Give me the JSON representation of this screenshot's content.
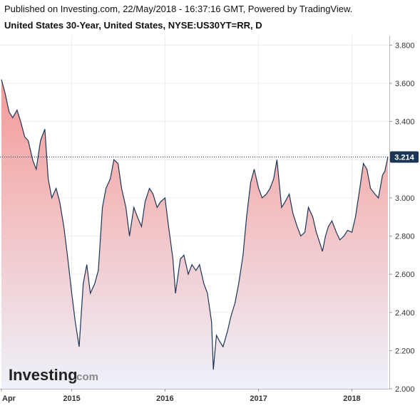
{
  "header": {
    "published": "Published on Investing.com, 22/May/2018 - 16:37:16 GMT, Powered by TradingView.",
    "symbol": "United States 30-Year, United States, NYSE:US30YT=RR, D"
  },
  "logo": {
    "main": "Investing",
    "suffix": ".com"
  },
  "colors": {
    "line": "#1c3557",
    "fill_top": "#f59a97",
    "fill_bottom": "#eef1fa",
    "last_label_bg": "#1c3557",
    "grid": "#ececec"
  },
  "chart_data": {
    "type": "area",
    "ylim": [
      2.0,
      3.85
    ],
    "grid": true,
    "y_ticks": [
      "3.800",
      "3.600",
      "3.400",
      "3.200",
      "3.000",
      "2.800",
      "2.600",
      "2.400",
      "2.200",
      "2.000"
    ],
    "x_tick_labels": [
      "Apr",
      "2015",
      "2016",
      "2017",
      "2018"
    ],
    "last_value": "3.214",
    "series": [
      {
        "x": [
          "2014-04-01",
          "2014-04-15",
          "2014-05-01",
          "2014-05-15",
          "2014-06-01",
          "2014-06-15",
          "2014-07-01",
          "2014-07-15",
          "2014-08-01",
          "2014-08-15",
          "2014-09-01",
          "2014-09-18",
          "2014-10-01",
          "2014-10-15",
          "2014-11-01",
          "2014-11-15",
          "2014-12-01",
          "2014-12-15",
          "2015-01-01",
          "2015-01-15",
          "2015-01-30",
          "2015-02-15",
          "2015-03-01",
          "2015-03-15",
          "2015-04-01",
          "2015-04-15",
          "2015-05-01",
          "2015-05-15",
          "2015-06-01",
          "2015-06-15",
          "2015-07-01",
          "2015-07-15",
          "2015-08-01",
          "2015-08-15",
          "2015-09-01",
          "2015-09-15",
          "2015-10-01",
          "2015-10-15",
          "2015-11-01",
          "2015-11-15",
          "2015-12-01",
          "2015-12-15",
          "2016-01-01",
          "2016-01-15",
          "2016-02-01",
          "2016-02-11",
          "2016-03-01",
          "2016-03-15",
          "2016-04-01",
          "2016-04-15",
          "2016-05-01",
          "2016-05-15",
          "2016-06-01",
          "2016-06-15",
          "2016-07-01",
          "2016-07-08",
          "2016-07-20",
          "2016-08-01",
          "2016-08-15",
          "2016-09-01",
          "2016-09-15",
          "2016-10-01",
          "2016-10-15",
          "2016-11-01",
          "2016-11-15",
          "2016-12-01",
          "2016-12-15",
          "2017-01-01",
          "2017-01-15",
          "2017-02-01",
          "2017-02-15",
          "2017-03-01",
          "2017-03-14",
          "2017-04-01",
          "2017-04-15",
          "2017-05-01",
          "2017-05-15",
          "2017-06-01",
          "2017-06-15",
          "2017-07-01",
          "2017-07-15",
          "2017-08-01",
          "2017-08-15",
          "2017-09-01",
          "2017-09-08",
          "2017-09-20",
          "2017-10-01",
          "2017-10-15",
          "2017-11-01",
          "2017-11-15",
          "2017-12-01",
          "2017-12-15",
          "2018-01-01",
          "2018-01-15",
          "2018-02-01",
          "2018-02-15",
          "2018-03-01",
          "2018-03-15",
          "2018-04-01",
          "2018-04-15",
          "2018-05-01",
          "2018-05-10",
          "2018-05-22"
        ],
        "values": [
          3.62,
          3.55,
          3.45,
          3.42,
          3.46,
          3.4,
          3.32,
          3.3,
          3.2,
          3.15,
          3.3,
          3.36,
          3.1,
          3.0,
          3.05,
          2.98,
          2.85,
          2.7,
          2.5,
          2.35,
          2.22,
          2.55,
          2.65,
          2.5,
          2.55,
          2.62,
          2.95,
          3.05,
          3.1,
          3.2,
          3.18,
          3.05,
          2.95,
          2.8,
          2.95,
          2.9,
          2.85,
          2.98,
          3.05,
          3.02,
          2.95,
          2.98,
          3.0,
          2.85,
          2.68,
          2.5,
          2.68,
          2.7,
          2.6,
          2.65,
          2.62,
          2.65,
          2.55,
          2.5,
          2.35,
          2.1,
          2.28,
          2.25,
          2.22,
          2.3,
          2.38,
          2.45,
          2.55,
          2.7,
          2.9,
          3.08,
          3.15,
          3.05,
          3.0,
          3.02,
          3.05,
          3.1,
          3.2,
          2.95,
          2.98,
          3.02,
          2.92,
          2.85,
          2.8,
          2.82,
          2.95,
          2.9,
          2.82,
          2.75,
          2.72,
          2.8,
          2.85,
          2.88,
          2.82,
          2.78,
          2.8,
          2.83,
          2.82,
          2.9,
          3.05,
          3.18,
          3.15,
          3.05,
          3.02,
          3.0,
          3.12,
          3.14,
          3.214
        ]
      }
    ]
  }
}
